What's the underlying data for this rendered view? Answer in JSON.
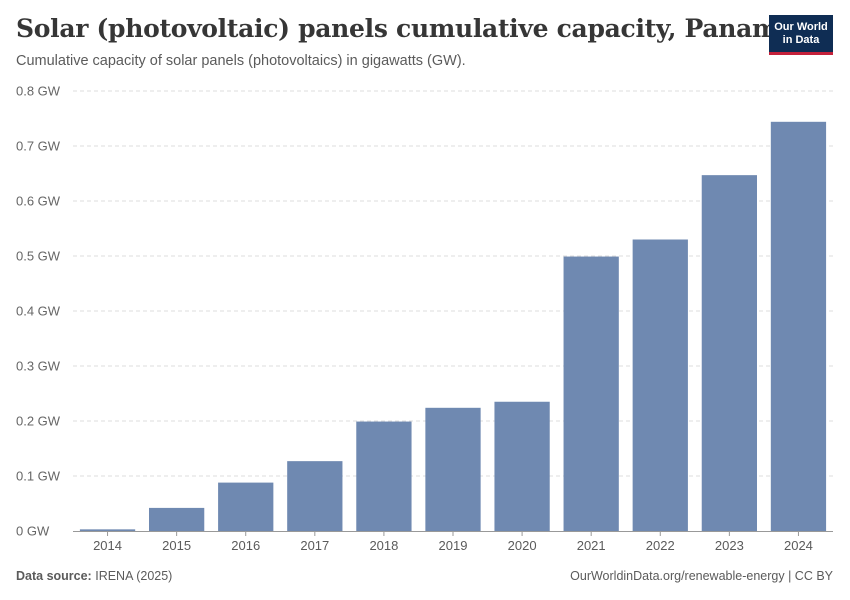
{
  "header": {
    "title": "Solar (photovoltaic) panels cumulative capacity, Panama",
    "subtitle": "Cumulative capacity of solar panels (photovoltaics) in gigawatts (GW).",
    "logo_line1": "Our World",
    "logo_line2": "in Data"
  },
  "footer": {
    "source_label": "Data source:",
    "source_value": "IRENA (2025)",
    "credit": "OurWorldinData.org/renewable-energy | CC BY"
  },
  "colors": {
    "bar": "#6f89b1",
    "grid": "#dddddd",
    "axis": "#999999"
  },
  "chart_data": {
    "type": "bar",
    "title": "Solar (photovoltaic) panels cumulative capacity, Panama",
    "categories": [
      "2014",
      "2015",
      "2016",
      "2017",
      "2018",
      "2019",
      "2020",
      "2021",
      "2022",
      "2023",
      "2024"
    ],
    "values": [
      0.003,
      0.042,
      0.088,
      0.127,
      0.199,
      0.224,
      0.235,
      0.499,
      0.53,
      0.647,
      0.744
    ],
    "ylim": [
      0,
      0.8
    ],
    "yticks": [
      0,
      0.1,
      0.2,
      0.3,
      0.4,
      0.5,
      0.6,
      0.7,
      0.8
    ],
    "ytick_labels": [
      "0 GW",
      "0.1 GW",
      "0.2 GW",
      "0.3 GW",
      "0.4 GW",
      "0.5 GW",
      "0.6 GW",
      "0.7 GW",
      "0.8 GW"
    ],
    "grid": true,
    "legend": "none"
  }
}
